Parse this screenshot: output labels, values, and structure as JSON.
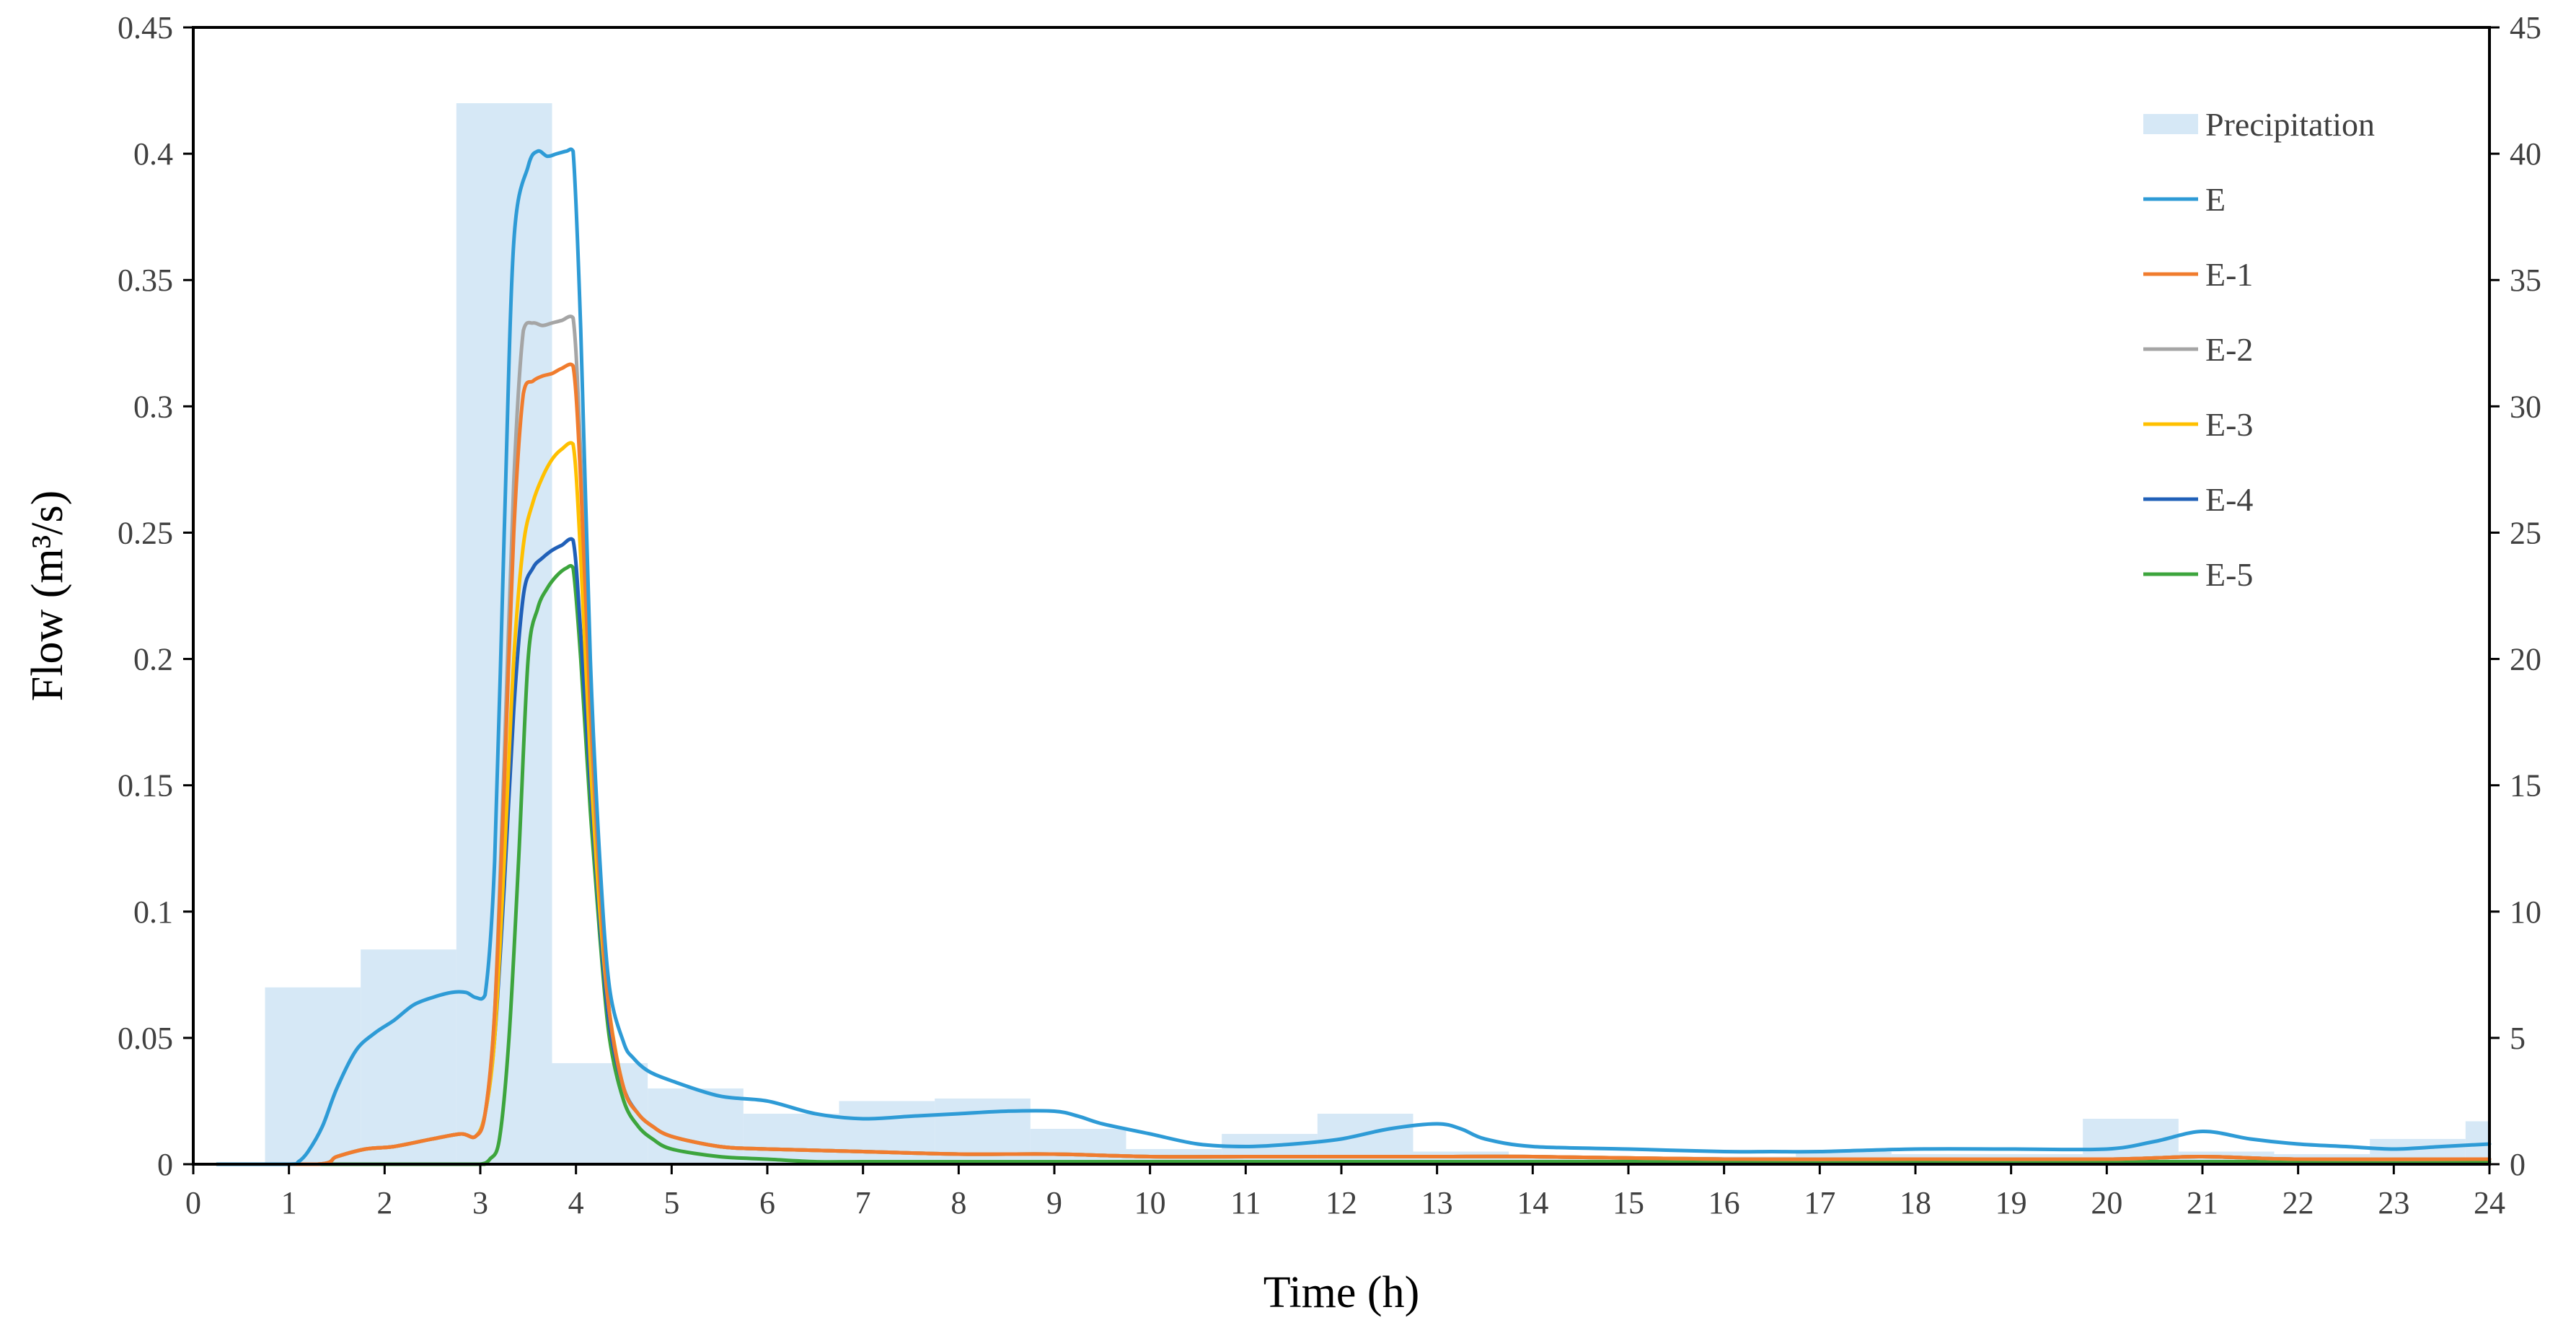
{
  "chart_data": {
    "type": "line",
    "title": "",
    "xlabel": "Time (h)",
    "ylabel": "Flow (m³/s)",
    "y2label": "",
    "xlim": [
      0,
      24
    ],
    "ylim": [
      0,
      0.45
    ],
    "y2lim": [
      0,
      45
    ],
    "grid": false,
    "legend_position": "top-right",
    "x_ticks": [
      "0",
      "1",
      "2",
      "3",
      "4",
      "5",
      "6",
      "7",
      "8",
      "9",
      "10",
      "11",
      "12",
      "13",
      "14",
      "15",
      "16",
      "17",
      "18",
      "19",
      "20",
      "21",
      "22",
      "23",
      "24"
    ],
    "y_ticks": [
      "0",
      "0.05",
      "0.1",
      "0.15",
      "0.2",
      "0.25",
      "0.3",
      "0.35",
      "0.4",
      "0.45"
    ],
    "y2_ticks": [
      "0",
      "5",
      "10",
      "15",
      "20",
      "25",
      "30",
      "35",
      "40",
      "45"
    ],
    "precipitation": {
      "name": "Precipitation",
      "color": "#d6e8f6",
      "bins": [
        {
          "start": 0.75,
          "end": 1.75,
          "value": 7.0
        },
        {
          "start": 1.75,
          "end": 2.75,
          "value": 8.5
        },
        {
          "start": 2.75,
          "end": 3.75,
          "value": 42.0
        },
        {
          "start": 3.75,
          "end": 4.75,
          "value": 4.0
        },
        {
          "start": 4.75,
          "end": 5.75,
          "value": 3.0
        },
        {
          "start": 5.75,
          "end": 6.75,
          "value": 2.0
        },
        {
          "start": 6.75,
          "end": 7.75,
          "value": 2.5
        },
        {
          "start": 7.75,
          "end": 8.75,
          "value": 2.6
        },
        {
          "start": 8.75,
          "end": 9.75,
          "value": 1.4
        },
        {
          "start": 9.75,
          "end": 10.75,
          "value": 0.6
        },
        {
          "start": 10.75,
          "end": 11.75,
          "value": 1.2
        },
        {
          "start": 11.75,
          "end": 12.75,
          "value": 2.0
        },
        {
          "start": 12.75,
          "end": 13.75,
          "value": 0.5
        },
        {
          "start": 13.75,
          "end": 14.75,
          "value": 0.3
        },
        {
          "start": 14.75,
          "end": 15.75,
          "value": 0.3
        },
        {
          "start": 15.75,
          "end": 16.75,
          "value": 0.3
        },
        {
          "start": 16.75,
          "end": 17.75,
          "value": 0.5
        },
        {
          "start": 17.75,
          "end": 18.75,
          "value": 0.4
        },
        {
          "start": 18.75,
          "end": 19.75,
          "value": 0.4
        },
        {
          "start": 19.75,
          "end": 20.75,
          "value": 1.8
        },
        {
          "start": 20.75,
          "end": 21.75,
          "value": 0.5
        },
        {
          "start": 21.75,
          "end": 22.75,
          "value": 0.4
        },
        {
          "start": 22.75,
          "end": 23.75,
          "value": 1.0
        },
        {
          "start": 23.75,
          "end": 24.0,
          "value": 1.7
        }
      ]
    },
    "series": [
      {
        "name": "E",
        "color": "#2e9bd6",
        "x": [
          0.25,
          1.0,
          1.1,
          1.2,
          1.35,
          1.5,
          1.7,
          1.9,
          2.1,
          2.3,
          2.5,
          2.7,
          2.85,
          2.95,
          3.05,
          3.15,
          3.25,
          3.35,
          3.5,
          3.6,
          3.7,
          3.8,
          3.9,
          3.97,
          4.05,
          4.15,
          4.25,
          4.35,
          4.5,
          4.6,
          4.75,
          5.0,
          5.5,
          6.0,
          6.5,
          7.0,
          7.5,
          8.0,
          8.5,
          9.0,
          9.25,
          9.5,
          10.0,
          10.5,
          11.0,
          11.5,
          12.0,
          12.5,
          13.0,
          13.25,
          13.5,
          14.0,
          15.0,
          16.0,
          16.5,
          17.0,
          18.0,
          19.0,
          20.0,
          20.5,
          21.0,
          21.5,
          22.0,
          22.5,
          23.0,
          23.5,
          24.0
        ],
        "values": [
          0,
          0,
          0.001,
          0.005,
          0.015,
          0.03,
          0.045,
          0.052,
          0.057,
          0.063,
          0.066,
          0.068,
          0.068,
          0.066,
          0.067,
          0.12,
          0.25,
          0.365,
          0.395,
          0.401,
          0.399,
          0.4,
          0.401,
          0.401,
          0.33,
          0.2,
          0.12,
          0.07,
          0.048,
          0.042,
          0.037,
          0.033,
          0.027,
          0.025,
          0.02,
          0.018,
          0.019,
          0.02,
          0.021,
          0.021,
          0.019,
          0.016,
          0.012,
          0.008,
          0.007,
          0.008,
          0.01,
          0.014,
          0.016,
          0.014,
          0.01,
          0.007,
          0.006,
          0.005,
          0.005,
          0.005,
          0.006,
          0.006,
          0.006,
          0.009,
          0.013,
          0.01,
          0.008,
          0.007,
          0.006,
          0.007,
          0.008
        ]
      },
      {
        "name": "E-1",
        "color": "#f07c2e",
        "x": [
          0.25,
          1.3,
          1.5,
          1.8,
          2.1,
          2.5,
          2.8,
          2.95,
          3.05,
          3.15,
          3.25,
          3.35,
          3.45,
          3.55,
          3.65,
          3.75,
          3.85,
          3.97,
          4.05,
          4.15,
          4.25,
          4.35,
          4.5,
          4.65,
          4.8,
          5.0,
          5.5,
          6.0,
          7.0,
          8.0,
          9.0,
          10.0,
          11.0,
          12.0,
          13.0,
          14.0,
          16.0,
          18.0,
          20.0,
          21.0,
          22.0,
          24.0
        ],
        "values": [
          0,
          0,
          0.003,
          0.006,
          0.007,
          0.01,
          0.012,
          0.011,
          0.02,
          0.06,
          0.15,
          0.25,
          0.305,
          0.31,
          0.312,
          0.313,
          0.315,
          0.316,
          0.27,
          0.18,
          0.11,
          0.06,
          0.03,
          0.02,
          0.015,
          0.011,
          0.007,
          0.006,
          0.005,
          0.004,
          0.004,
          0.003,
          0.003,
          0.003,
          0.003,
          0.003,
          0.002,
          0.002,
          0.002,
          0.003,
          0.002,
          0.002
        ]
      },
      {
        "name": "E-2",
        "color": "#a5a5a5",
        "x": [
          0.25,
          1.3,
          1.5,
          1.8,
          2.1,
          2.5,
          2.8,
          2.95,
          3.05,
          3.15,
          3.25,
          3.35,
          3.45,
          3.55,
          3.65,
          3.75,
          3.85,
          3.97,
          4.05,
          4.15,
          4.25,
          4.35,
          4.5,
          4.65,
          4.8,
          5.0,
          5.5,
          6.0,
          7.0,
          8.0,
          9.0,
          10.0,
          11.0,
          12.0,
          13.0,
          14.0,
          16.0,
          18.0,
          20.0,
          21.0,
          22.0,
          24.0
        ],
        "values": [
          0,
          0,
          0.003,
          0.006,
          0.007,
          0.01,
          0.012,
          0.011,
          0.02,
          0.06,
          0.16,
          0.27,
          0.33,
          0.333,
          0.332,
          0.333,
          0.334,
          0.335,
          0.28,
          0.18,
          0.11,
          0.06,
          0.03,
          0.02,
          0.015,
          0.011,
          0.007,
          0.006,
          0.005,
          0.004,
          0.004,
          0.003,
          0.003,
          0.003,
          0.003,
          0.003,
          0.002,
          0.002,
          0.002,
          0.003,
          0.002,
          0.002
        ]
      },
      {
        "name": "E-3",
        "color": "#ffc000",
        "x": [
          0.25,
          1.3,
          1.5,
          1.8,
          2.1,
          2.5,
          2.8,
          2.95,
          3.05,
          3.15,
          3.25,
          3.35,
          3.45,
          3.55,
          3.65,
          3.75,
          3.85,
          3.97,
          4.05,
          4.15,
          4.25,
          4.35,
          4.5,
          4.65,
          4.8,
          5.0,
          5.5,
          6.0,
          7.0,
          8.0,
          9.0,
          10.0,
          11.0,
          12.0,
          13.0,
          14.0,
          16.0,
          18.0,
          20.0,
          21.0,
          22.0,
          24.0
        ],
        "values": [
          0,
          0,
          0.003,
          0.006,
          0.007,
          0.01,
          0.012,
          0.011,
          0.02,
          0.05,
          0.12,
          0.2,
          0.245,
          0.262,
          0.272,
          0.279,
          0.283,
          0.285,
          0.24,
          0.16,
          0.1,
          0.06,
          0.03,
          0.02,
          0.015,
          0.011,
          0.007,
          0.006,
          0.005,
          0.004,
          0.004,
          0.003,
          0.003,
          0.003,
          0.003,
          0.003,
          0.002,
          0.002,
          0.002,
          0.003,
          0.002,
          0.002
        ]
      },
      {
        "name": "E-4",
        "color": "#2060b8",
        "x": [
          0.25,
          1.3,
          1.5,
          1.8,
          2.1,
          2.5,
          2.8,
          2.95,
          3.05,
          3.15,
          3.25,
          3.35,
          3.45,
          3.55,
          3.65,
          3.75,
          3.85,
          3.97,
          4.05,
          4.15,
          4.25,
          4.35,
          4.5,
          4.65,
          4.8,
          5.0,
          5.5,
          6.0,
          7.0,
          8.0,
          9.0,
          10.0,
          11.0,
          12.0,
          13.0,
          14.0,
          16.0,
          18.0,
          20.0,
          21.0,
          22.0,
          24.0
        ],
        "values": [
          0,
          0,
          0.003,
          0.006,
          0.007,
          0.01,
          0.012,
          0.011,
          0.02,
          0.05,
          0.11,
          0.18,
          0.225,
          0.236,
          0.24,
          0.243,
          0.245,
          0.247,
          0.21,
          0.15,
          0.095,
          0.055,
          0.03,
          0.02,
          0.015,
          0.011,
          0.007,
          0.006,
          0.005,
          0.004,
          0.004,
          0.003,
          0.003,
          0.003,
          0.003,
          0.003,
          0.002,
          0.002,
          0.002,
          0.003,
          0.002,
          0.002
        ]
      },
      {
        "name": "E-5",
        "color": "#3da53d",
        "x": [
          0.25,
          2.8,
          3.0,
          3.1,
          3.2,
          3.3,
          3.4,
          3.5,
          3.6,
          3.7,
          3.8,
          3.9,
          3.97,
          4.05,
          4.15,
          4.25,
          4.35,
          4.5,
          4.65,
          4.8,
          5.0,
          5.5,
          6.0,
          6.5,
          7.0,
          8.0,
          10.0,
          24.0
        ],
        "values": [
          0,
          0,
          0.0,
          0.002,
          0.01,
          0.05,
          0.12,
          0.2,
          0.22,
          0.228,
          0.233,
          0.236,
          0.236,
          0.2,
          0.14,
          0.09,
          0.05,
          0.025,
          0.015,
          0.01,
          0.006,
          0.003,
          0.002,
          0.001,
          0.001,
          0.001,
          0.001,
          0.001
        ]
      }
    ]
  }
}
